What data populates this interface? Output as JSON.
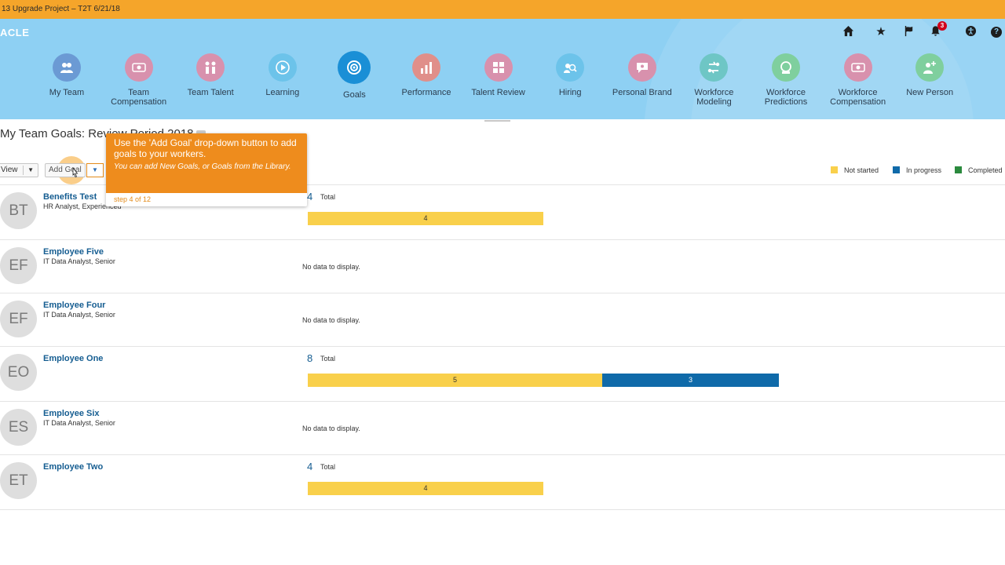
{
  "topbar": {
    "title": "13 Upgrade Project – T2T 6/21/18"
  },
  "header": {
    "brand": "ACLE",
    "notifications_count": "3",
    "help_label": "?"
  },
  "nav": [
    {
      "label": "My Team",
      "color": "#6b9ad4",
      "icon": "people-icon"
    },
    {
      "label": "Team Compensation",
      "color": "#d891ad",
      "icon": "money-icon"
    },
    {
      "label": "Team Talent",
      "color": "#d891ad",
      "icon": "talent-icon"
    },
    {
      "label": "Learning",
      "color": "#6cc3ea",
      "icon": "play-icon"
    },
    {
      "label": "Goals",
      "color": "#1a8fd6",
      "icon": "target-icon",
      "active": true
    },
    {
      "label": "Performance",
      "color": "#e08f8a",
      "icon": "chart-icon"
    },
    {
      "label": "Talent Review",
      "color": "#d891ad",
      "icon": "grid-icon"
    },
    {
      "label": "Hiring",
      "color": "#6cc3ea",
      "icon": "hiring-icon"
    },
    {
      "label": "Personal Brand",
      "color": "#d891ad",
      "icon": "brand-icon"
    },
    {
      "label": "Workforce Modeling",
      "color": "#6ec6c5",
      "icon": "modeling-icon"
    },
    {
      "label": "Workforce Predictions",
      "color": "#7fcf9e",
      "icon": "crystal-ball-icon"
    },
    {
      "label": "Workforce Compensation",
      "color": "#d891ad",
      "icon": "money-icon"
    },
    {
      "label": "New Person",
      "color": "#7fcf9e",
      "icon": "new-person-icon"
    }
  ],
  "page": {
    "title": "My Team Goals: Review Period 2018",
    "view_label": "View",
    "add_goal_label": "Add Goal"
  },
  "legend": [
    {
      "label": "Not started",
      "color": "#f9d04b"
    },
    {
      "label": "In progress",
      "color": "#0f6aa9"
    },
    {
      "label": "Completed",
      "color": "#2b8a3e"
    }
  ],
  "callout": {
    "main": "Use the 'Add Goal' drop-down button to add goals to your workers.",
    "sub": "You can add New Goals, or Goals from the Library.",
    "step": "step 4 of 12"
  },
  "total_label": "Total",
  "no_data": "No data to display.",
  "employees": [
    {
      "initials": "BT",
      "name": "Benefits Test",
      "title": "HR Analyst, Experienced",
      "total": "4",
      "not_started": 4,
      "in_progress": 0,
      "completed": 0
    },
    {
      "initials": "EF",
      "name": "Employee Five",
      "title": "IT Data Analyst, Senior",
      "total": null
    },
    {
      "initials": "EF",
      "name": "Employee Four",
      "title": "IT Data Analyst, Senior",
      "total": null
    },
    {
      "initials": "EO",
      "name": "Employee One",
      "title": "",
      "total": "8",
      "not_started": 5,
      "in_progress": 3,
      "completed": 0
    },
    {
      "initials": "ES",
      "name": "Employee Six",
      "title": "IT Data Analyst, Senior",
      "total": null
    },
    {
      "initials": "ET",
      "name": "Employee Two",
      "title": "",
      "total": "4",
      "not_started": 4,
      "in_progress": 0,
      "completed": 0
    }
  ]
}
